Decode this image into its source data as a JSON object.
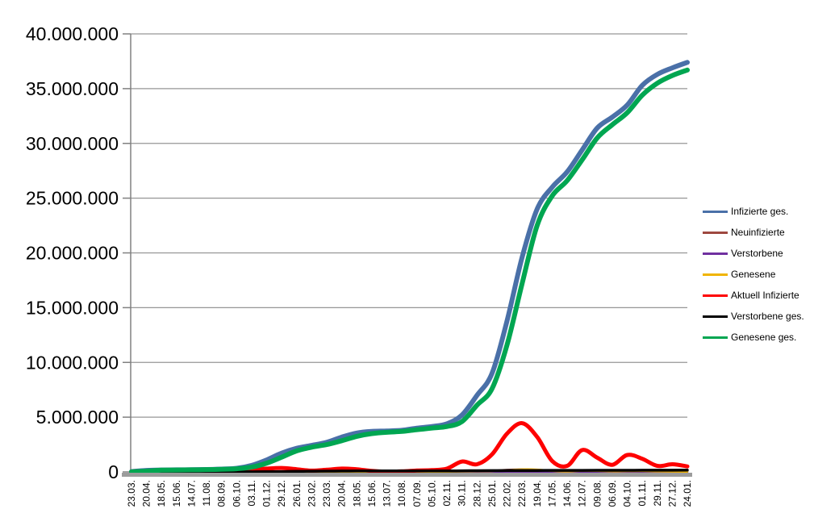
{
  "chart_data": {
    "type": "line",
    "title": "",
    "xlabel": "",
    "ylabel": "",
    "grid": "horizontal",
    "legend_position": "right",
    "x_tick_label_rotation_deg": 90,
    "y_axis": {
      "min": 0,
      "max": 40000000,
      "tick_step": 5000000,
      "tick_labels": [
        "0",
        "5.000.000",
        "10.000.000",
        "15.000.000",
        "20.000.000",
        "25.000.000",
        "30.000.000",
        "35.000.000",
        "40.000.000"
      ]
    },
    "categories": [
      "23.03.",
      "20.04.",
      "18.05.",
      "15.06.",
      "14.07.",
      "11.08.",
      "08.09.",
      "06.10.",
      "03.11.",
      "01.12.",
      "29.12.",
      "26.01.",
      "23.02.",
      "23.03.",
      "20.04.",
      "18.05.",
      "15.06.",
      "13.07.",
      "10.08.",
      "07.09.",
      "05.10.",
      "02.11.",
      "30.11.",
      "28.12.",
      "25.01.",
      "22.02.",
      "22.03.",
      "19.04.",
      "17.05.",
      "14.06.",
      "12.07.",
      "09.08.",
      "06.09.",
      "04.10.",
      "01.11.",
      "29.11.",
      "27.12.",
      "24.01."
    ],
    "values_unit": "millions",
    "series": [
      {
        "name": "Infizierte ges.",
        "color": "#4A70A8",
        "line_width": 6,
        "values_millions": [
          0.03,
          0.14,
          0.18,
          0.19,
          0.2,
          0.22,
          0.26,
          0.33,
          0.6,
          1.1,
          1.72,
          2.16,
          2.42,
          2.7,
          3.18,
          3.55,
          3.7,
          3.74,
          3.8,
          4.0,
          4.15,
          4.4,
          5.2,
          7.0,
          9.0,
          13.8,
          19.6,
          24.0,
          26.0,
          27.4,
          29.4,
          31.4,
          32.4,
          33.5,
          35.3,
          36.3,
          36.9,
          37.4
        ]
      },
      {
        "name": "Neuinfizierte",
        "color": "#9E4840",
        "line_width": 2.5,
        "values_millions": [
          0.006,
          0.002,
          0.001,
          0.0,
          0.0,
          0.001,
          0.002,
          0.005,
          0.015,
          0.019,
          0.022,
          0.011,
          0.007,
          0.016,
          0.021,
          0.011,
          0.004,
          0.001,
          0.003,
          0.01,
          0.011,
          0.021,
          0.055,
          0.04,
          0.095,
          0.19,
          0.225,
          0.15,
          0.055,
          0.035,
          0.11,
          0.065,
          0.04,
          0.09,
          0.055,
          0.03,
          0.04,
          0.02
        ]
      },
      {
        "name": "Verstorbene",
        "color": "#7030A0",
        "line_width": 2.5,
        "values_millions": [
          0.001,
          0.001,
          0.001,
          0.001,
          0.001,
          0.001,
          0.001,
          0.001,
          0.001,
          0.001,
          0.001,
          0.001,
          0.001,
          0.001,
          0.001,
          0.001,
          0.001,
          0.001,
          0.001,
          0.001,
          0.001,
          0.001,
          0.001,
          0.001,
          0.001,
          0.001,
          0.001,
          0.001,
          0.001,
          0.001,
          0.001,
          0.001,
          0.001,
          0.001,
          0.001,
          0.001,
          0.001,
          0.001
        ]
      },
      {
        "name": "Genesene",
        "color": "#F0B400",
        "line_width": 2.5,
        "values_millions": [
          0.002,
          0.005,
          0.002,
          0.001,
          0.0,
          0.001,
          0.001,
          0.003,
          0.009,
          0.016,
          0.021,
          0.016,
          0.008,
          0.013,
          0.019,
          0.015,
          0.007,
          0.002,
          0.002,
          0.007,
          0.009,
          0.014,
          0.04,
          0.05,
          0.075,
          0.15,
          0.23,
          0.215,
          0.095,
          0.04,
          0.1,
          0.095,
          0.05,
          0.07,
          0.08,
          0.045,
          0.03,
          0.025
        ]
      },
      {
        "name": "Aktuell Infizierte",
        "color": "#FE0000",
        "line_width": 5,
        "values_millions": [
          0.04,
          0.06,
          0.02,
          0.01,
          0.01,
          0.01,
          0.02,
          0.04,
          0.16,
          0.3,
          0.36,
          0.24,
          0.12,
          0.2,
          0.3,
          0.24,
          0.09,
          0.02,
          0.05,
          0.13,
          0.16,
          0.3,
          0.95,
          0.7,
          1.6,
          3.5,
          4.45,
          3.2,
          1.0,
          0.55,
          2.0,
          1.3,
          0.65,
          1.55,
          1.2,
          0.55,
          0.7,
          0.5
        ]
      },
      {
        "name": "Verstorbene ges.",
        "color": "#000000",
        "line_width": 3.5,
        "values_millions": [
          0.0,
          0.005,
          0.008,
          0.009,
          0.009,
          0.009,
          0.009,
          0.01,
          0.011,
          0.017,
          0.033,
          0.054,
          0.069,
          0.075,
          0.081,
          0.087,
          0.09,
          0.091,
          0.092,
          0.092,
          0.094,
          0.096,
          0.101,
          0.112,
          0.117,
          0.122,
          0.127,
          0.133,
          0.138,
          0.14,
          0.142,
          0.145,
          0.148,
          0.15,
          0.153,
          0.156,
          0.158,
          0.16
        ]
      },
      {
        "name": "Genesene ges.",
        "color": "#00A651",
        "line_width": 6,
        "values_millions": [
          0.01,
          0.07,
          0.16,
          0.18,
          0.19,
          0.21,
          0.24,
          0.29,
          0.44,
          0.8,
          1.35,
          1.92,
          2.26,
          2.5,
          2.85,
          3.25,
          3.5,
          3.62,
          3.7,
          3.85,
          4.0,
          4.15,
          4.6,
          6.1,
          7.6,
          11.6,
          17.2,
          22.5,
          25.2,
          26.6,
          28.5,
          30.5,
          31.7,
          32.8,
          34.4,
          35.5,
          36.2,
          36.7
        ]
      }
    ]
  },
  "colors": {
    "background": "#FFFFFF",
    "gridline": "#969696",
    "axis_line": "#808080",
    "axis_band": "#9C9C9C",
    "text": "#000000"
  }
}
